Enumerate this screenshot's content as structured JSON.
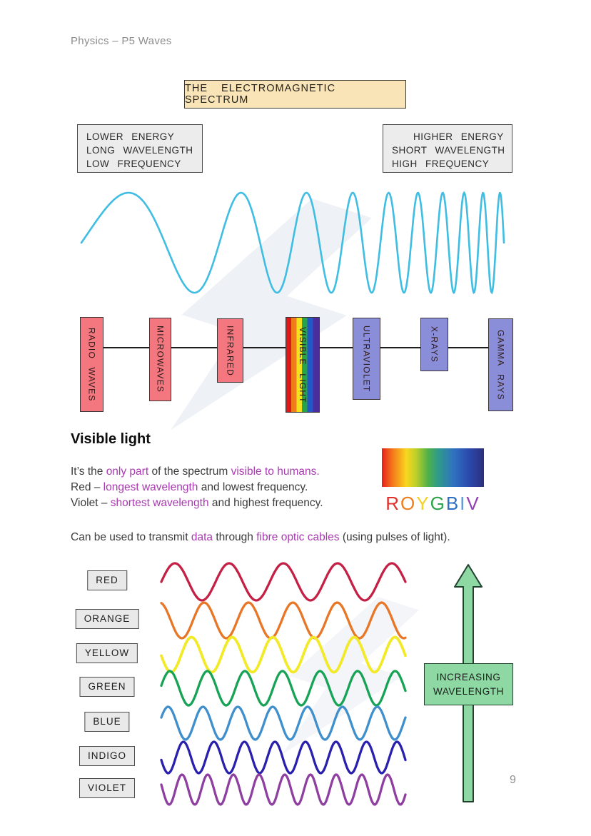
{
  "page": {
    "header": "Physics – P5 Waves",
    "page_number": "9"
  },
  "banner": {
    "label": "THE ELECTROMAGNETIC SPECTRUM"
  },
  "energy_notes": {
    "left": {
      "lines": [
        "LOWER ENERGY",
        "LONG WAVELENGTH",
        "LOW FREQUENCY"
      ]
    },
    "right": {
      "lines": [
        "HIGHER ENERGY",
        "SHORT WAVELENGTH",
        "HIGH FREQUENCY"
      ]
    }
  },
  "chirp_wave": {
    "color": "#3fbde2",
    "cycles": 9.5,
    "freq_ratio": 14
  },
  "spectrum": {
    "colors": {
      "pink": "#f4767e",
      "purple": "#8a8ed9"
    },
    "bands": [
      {
        "label": "RADIO WAVES",
        "fill": "pink"
      },
      {
        "label": "MICROWAVES",
        "fill": "pink"
      },
      {
        "label": "INFRARED",
        "fill": "pink"
      },
      {
        "label": "VISIBLE LIGHT",
        "fill": "rainbow"
      },
      {
        "label": "ULTRAVIOLET",
        "fill": "purple"
      },
      {
        "label": "X-RAYS",
        "fill": "purple"
      },
      {
        "label": "GAMMA RAYS",
        "fill": "purple"
      }
    ]
  },
  "visible_light": {
    "heading": "Visible light",
    "highlight_color": "#a93ab0",
    "intro_lines": [
      {
        "segments": [
          {
            "t": "It’s the ",
            "c": false
          },
          {
            "t": "only part",
            "c": true
          },
          {
            "t": " of the spectrum ",
            "c": false
          },
          {
            "t": "visible to humans.",
            "c": true
          }
        ]
      },
      {
        "segments": [
          {
            "t": "Red – ",
            "c": false
          },
          {
            "t": "longest wavelength",
            "c": true
          },
          {
            "t": " and lowest frequency.",
            "c": false
          }
        ]
      },
      {
        "segments": [
          {
            "t": "Violet – ",
            "c": false
          },
          {
            "t": "shortest wavelength",
            "c": true
          },
          {
            "t": " and highest frequency.",
            "c": false
          }
        ]
      }
    ],
    "transmit_line": {
      "segments": [
        {
          "t": "Can be used to transmit ",
          "c": false
        },
        {
          "t": "data",
          "c": true
        },
        {
          "t": " through ",
          "c": false
        },
        {
          "t": "fibre optic cables",
          "c": true
        },
        {
          "t": " (using pulses of light).",
          "c": false
        }
      ]
    }
  },
  "roygbiv": {
    "letters": [
      {
        "ch": "R",
        "color": "#e2312d"
      },
      {
        "ch": "O",
        "color": "#ef7d1b"
      },
      {
        "ch": "Y",
        "color": "#f2d21f"
      },
      {
        "ch": "G",
        "color": "#2da44c"
      },
      {
        "ch": "B",
        "color": "#2b6fc3"
      },
      {
        "ch": "I",
        "color": "#5f9ad8"
      },
      {
        "ch": "V",
        "color": "#9340b5"
      }
    ]
  },
  "color_waves": [
    {
      "label": "RED",
      "color": "#c42045",
      "cycles": 4.5
    },
    {
      "label": "ORANGE",
      "color": "#e87627",
      "cycles": 5.5
    },
    {
      "label": "YELLOW",
      "color": "#f2ea28",
      "cycles": 6
    },
    {
      "label": "GREEN",
      "color": "#17a355",
      "cycles": 6.5
    },
    {
      "label": "BLUE",
      "color": "#3e8fcc",
      "cycles": 7
    },
    {
      "label": "INDIGO",
      "color": "#2a20ae",
      "cycles": 8
    },
    {
      "label": "VIOLET",
      "color": "#8e3fa0",
      "cycles": 9.5
    }
  ],
  "wavelength_arrow": {
    "lines": [
      "INCREASING",
      "WAVELENGTH"
    ],
    "fill": "#8ed8a4"
  }
}
